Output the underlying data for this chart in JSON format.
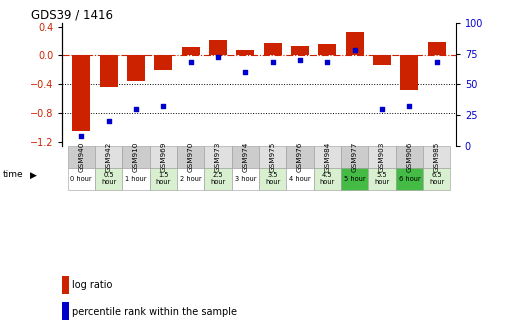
{
  "title": "GDS39 / 1416",
  "samples": [
    "GSM940",
    "GSM942",
    "GSM910",
    "GSM969",
    "GSM970",
    "GSM973",
    "GSM974",
    "GSM975",
    "GSM976",
    "GSM984",
    "GSM977",
    "GSM903",
    "GSM906",
    "GSM985"
  ],
  "time_labels": [
    "0 hour",
    "0.5\nhour",
    "1 hour",
    "1.5\nhour",
    "2 hour",
    "2.5\nhour",
    "3 hour",
    "3.5\nhour",
    "4 hour",
    "4.5\nhour",
    "5 hour",
    "5.5\nhour",
    "6 hour",
    "6.5\nhour"
  ],
  "log_ratio": [
    -1.05,
    -0.43,
    -0.35,
    -0.2,
    0.12,
    0.22,
    0.07,
    0.17,
    0.13,
    0.16,
    0.32,
    -0.13,
    -0.48,
    0.18
  ],
  "percentile": [
    8,
    20,
    30,
    32,
    68,
    72,
    60,
    68,
    70,
    68,
    78,
    30,
    32,
    68
  ],
  "ylim_left": [
    -1.25,
    0.45
  ],
  "ylim_right": [
    0,
    100
  ],
  "left_ticks": [
    0.4,
    0,
    -0.4,
    -0.8,
    -1.2
  ],
  "right_ticks": [
    100,
    75,
    50,
    25,
    0
  ],
  "bar_color": "#cc2200",
  "scatter_color": "#0000cc",
  "hline_color": "#cc2200",
  "dot_line_color": "#000000",
  "time_colors": [
    "#ffffff",
    "#d8efd0",
    "#ffffff",
    "#d8efd0",
    "#ffffff",
    "#d8efd0",
    "#ffffff",
    "#d8efd0",
    "#ffffff",
    "#d8efd0",
    "#44bb44",
    "#d8efd0",
    "#44bb44",
    "#d8efd0"
  ],
  "sample_bg_even": "#cccccc",
  "sample_bg_odd": "#e0e0e0"
}
